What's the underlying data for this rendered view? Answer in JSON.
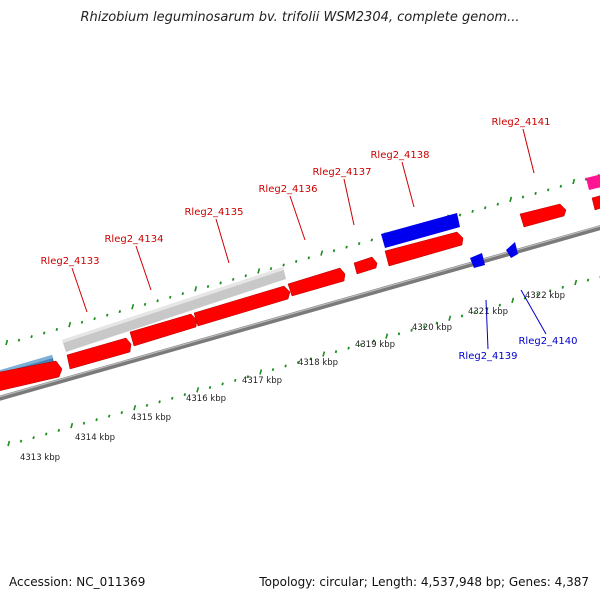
{
  "title": "Rhizobium leguminosarum bv. trifolii WSM2304, complete genom...",
  "footer": {
    "accession": "Accession: NC_011369",
    "summary": "Topology: circular; Length: 4,537,948 bp; Genes: 4,387"
  },
  "colors": {
    "forward_gene": "#ff0000",
    "reverse_gene": "#0000ee",
    "pseudo_gene": "#c8c8c8",
    "rna_gene": "#4682b4",
    "other_gene": "#ff1493",
    "forward_label": "#cc0000",
    "reverse_label": "#0000cc",
    "backbone": "#808080",
    "ticks": "#1e8c1e"
  },
  "scale_labels": [
    "4313 kbp",
    "4314 kbp",
    "4315 kbp",
    "4316 kbp",
    "4317 kbp",
    "4318 kbp",
    "4319 kbp",
    "4320 kbp",
    "4321 kbp",
    "4322 kbp"
  ],
  "gene_labels": [
    {
      "text": "Rleg2_4133",
      "strand": "forward"
    },
    {
      "text": "Rleg2_4134",
      "strand": "forward"
    },
    {
      "text": "Rleg2_4135",
      "strand": "forward"
    },
    {
      "text": "Rleg2_4136",
      "strand": "forward"
    },
    {
      "text": "Rleg2_4137",
      "strand": "forward"
    },
    {
      "text": "Rleg2_4138",
      "strand": "forward"
    },
    {
      "text": "Rleg2_4141",
      "strand": "forward"
    },
    {
      "text": "Rleg2_4139",
      "strand": "reverse"
    },
    {
      "text": "Rleg2_4140",
      "strand": "reverse"
    }
  ]
}
